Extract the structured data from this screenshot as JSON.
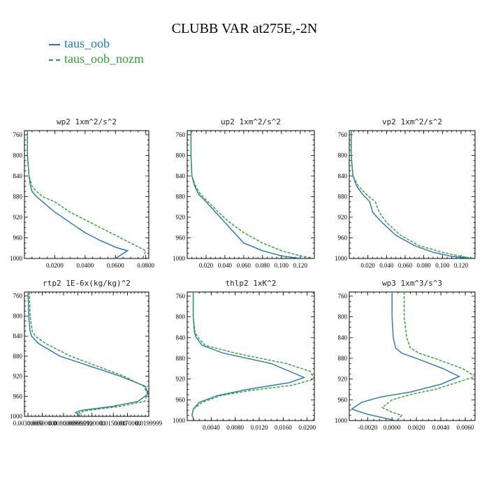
{
  "title": "CLUBB VAR at275E,-2N",
  "legend": [
    {
      "name": "taus_oob",
      "color": "#1f77b4"
    },
    {
      "name": "taus_oob_nozm",
      "color": "#2ca02c"
    }
  ],
  "chart_data": [
    {
      "type": "line",
      "title": "wp2   1xm^2/s^2",
      "xlim": [
        0,
        0.082
      ],
      "ylim": [
        1000,
        752
      ],
      "xticks": [
        "0.0200",
        "0.0400",
        "0.0600",
        "0.0800"
      ],
      "xtick_values": [
        0.02,
        0.04,
        0.06,
        0.08
      ],
      "yticks": [
        760,
        800,
        840,
        880,
        920,
        960,
        1000
      ],
      "series": [
        {
          "name": "taus_oob",
          "x": [
            0.002,
            0.002,
            0.003,
            0.004,
            0.005,
            0.008,
            0.012,
            0.02,
            0.03,
            0.04,
            0.05,
            0.06,
            0.068,
            0.06
          ],
          "y": [
            752,
            800,
            840,
            860,
            870,
            880,
            890,
            910,
            930,
            950,
            965,
            978,
            985,
            1000
          ]
        },
        {
          "name": "taus_oob_nozm",
          "x": [
            0.002,
            0.002,
            0.003,
            0.005,
            0.008,
            0.012,
            0.02,
            0.03,
            0.04,
            0.05,
            0.06,
            0.07,
            0.08,
            0.078
          ],
          "y": [
            752,
            800,
            840,
            860,
            870,
            880,
            890,
            910,
            925,
            940,
            955,
            970,
            985,
            1000
          ]
        }
      ]
    },
    {
      "type": "line",
      "title": "up2   1xm^2/s^2",
      "xlim": [
        0,
        0.135
      ],
      "ylim": [
        1000,
        752
      ],
      "xticks": [
        "0.020",
        "0.040",
        "0.060",
        "0.080",
        "0.100",
        "0.120"
      ],
      "xtick_values": [
        0.02,
        0.04,
        0.06,
        0.08,
        0.1,
        0.12
      ],
      "yticks": [
        760,
        800,
        840,
        880,
        920,
        960,
        1000
      ],
      "series": [
        {
          "name": "taus_oob",
          "x": [
            0.004,
            0.004,
            0.005,
            0.008,
            0.012,
            0.02,
            0.03,
            0.04,
            0.05,
            0.06,
            0.08,
            0.1,
            0.12
          ],
          "y": [
            752,
            800,
            840,
            860,
            875,
            890,
            910,
            930,
            950,
            970,
            985,
            995,
            1000
          ]
        },
        {
          "name": "taus_oob_nozm",
          "x": [
            0.004,
            0.004,
            0.005,
            0.009,
            0.014,
            0.022,
            0.033,
            0.045,
            0.06,
            0.08,
            0.1,
            0.12,
            0.135
          ],
          "y": [
            752,
            800,
            840,
            860,
            875,
            890,
            910,
            930,
            950,
            970,
            985,
            995,
            1000
          ]
        }
      ]
    },
    {
      "type": "line",
      "title": "vp2   1xm^2/s^2",
      "xlim": [
        0,
        0.135
      ],
      "ylim": [
        1000,
        752
      ],
      "xticks": [
        "0.020",
        "0.040",
        "0.060",
        "0.080",
        "0.100",
        "0.120"
      ],
      "xtick_values": [
        0.02,
        0.04,
        0.06,
        0.08,
        0.1,
        0.12
      ],
      "yticks": [
        760,
        800,
        840,
        880,
        920,
        960,
        1000
      ],
      "series": [
        {
          "name": "taus_oob",
          "x": [
            0.002,
            0.002,
            0.004,
            0.008,
            0.014,
            0.022,
            0.025,
            0.035,
            0.05,
            0.07,
            0.09,
            0.11,
            0.13
          ],
          "y": [
            752,
            800,
            840,
            860,
            875,
            890,
            910,
            930,
            955,
            975,
            988,
            996,
            1000
          ]
        },
        {
          "name": "taus_oob_nozm",
          "x": [
            0.002,
            0.002,
            0.004,
            0.01,
            0.018,
            0.028,
            0.032,
            0.04,
            0.055,
            0.075,
            0.1,
            0.12,
            0.135
          ],
          "y": [
            752,
            800,
            840,
            860,
            875,
            890,
            910,
            930,
            955,
            975,
            988,
            996,
            1000
          ]
        }
      ]
    },
    {
      "type": "line",
      "title": "rtp2   1E-6x(kg/kg)^2",
      "xlim": [
        0.0025,
        0.01999
      ],
      "ylim": [
        1000,
        752
      ],
      "xticks": [
        "0.00300000",
        "0.00500000",
        "0.00800000",
        "0.00999999",
        "0.0120000",
        "0.0150000",
        "0.0170000",
        "0.0199999"
      ],
      "xtick_values": [
        0.003,
        0.005,
        0.008,
        0.01,
        0.012,
        0.015,
        0.017,
        0.01999
      ],
      "yticks": [
        760,
        800,
        840,
        880,
        920,
        960,
        1000
      ],
      "series": [
        {
          "name": "taus_oob",
          "x": [
            0.003,
            0.0031,
            0.0033,
            0.0035,
            0.0045,
            0.0075,
            0.016,
            0.0195,
            0.0199,
            0.0185,
            0.015,
            0.0105,
            0.0097,
            0.0104
          ],
          "y": [
            752,
            800,
            830,
            840,
            855,
            880,
            920,
            940,
            955,
            970,
            980,
            988,
            992,
            1000
          ]
        },
        {
          "name": "taus_oob_nozm",
          "x": [
            0.0032,
            0.0033,
            0.0036,
            0.004,
            0.0055,
            0.009,
            0.0165,
            0.0193,
            0.0198,
            0.0194,
            0.016,
            0.0115,
            0.0102,
            0.0106
          ],
          "y": [
            752,
            800,
            830,
            840,
            855,
            880,
            920,
            940,
            955,
            970,
            980,
            988,
            992,
            1000
          ]
        }
      ]
    },
    {
      "type": "line",
      "title": "thlp2   1xK^2",
      "xlim": [
        0,
        0.0212
      ],
      "ylim": [
        1000,
        752
      ],
      "xticks": [
        "0.0040",
        "0.0080",
        "0.0120",
        "0.0160",
        "0.0200"
      ],
      "xtick_values": [
        0.004,
        0.008,
        0.012,
        0.016,
        0.02
      ],
      "yticks": [
        760,
        800,
        840,
        880,
        920,
        960,
        1000
      ],
      "series": [
        {
          "name": "taus_oob",
          "x": [
            0.001,
            0.001,
            0.0012,
            0.0015,
            0.0025,
            0.006,
            0.014,
            0.0195,
            0.017,
            0.01,
            0.005,
            0.002,
            0.001,
            0.0008,
            0.0012
          ],
          "y": [
            752,
            800,
            830,
            840,
            855,
            870,
            890,
            917,
            927,
            940,
            952,
            965,
            978,
            990,
            1000
          ]
        },
        {
          "name": "taus_oob_nozm",
          "x": [
            0.001,
            0.001,
            0.0013,
            0.0018,
            0.003,
            0.008,
            0.0165,
            0.0205,
            0.0212,
            0.0175,
            0.0105,
            0.0055,
            0.0025,
            0.001,
            0.0008,
            0.0012
          ],
          "y": [
            752,
            800,
            830,
            840,
            855,
            870,
            890,
            905,
            920,
            932,
            942,
            952,
            965,
            978,
            990,
            1000
          ]
        }
      ]
    },
    {
      "type": "line",
      "title": "wp3   1xm^3/s^3",
      "xlim": [
        -0.0035,
        0.0068
      ],
      "ylim": [
        1000,
        752
      ],
      "xticks": [
        "-0.0020",
        "0.0000",
        "0.0020",
        "0.0040",
        "0.0060"
      ],
      "xtick_values": [
        -0.002,
        0,
        0.002,
        0.004,
        0.006
      ],
      "yticks": [
        760,
        800,
        840,
        880,
        920,
        960,
        1000
      ],
      "series": [
        {
          "name": "taus_oob",
          "x": [
            0,
            0,
            0.0001,
            0.0003,
            0.0008,
            0.002,
            0.0042,
            0.0055,
            0.004,
            0.0015,
            -0.001,
            -0.0025,
            -0.0033,
            -0.002,
            0.0003
          ],
          "y": [
            752,
            800,
            840,
            860,
            870,
            880,
            900,
            915,
            930,
            945,
            955,
            965,
            978,
            988,
            1000
          ]
        },
        {
          "name": "taus_oob_nozm",
          "x": [
            0.001,
            0.001,
            0.0012,
            0.0015,
            0.0022,
            0.0035,
            0.0058,
            0.0068,
            0.0055,
            0.0035,
            0.0015,
            0.0,
            -0.0008,
            0.0001,
            0.0008,
            0.0004
          ],
          "y": [
            752,
            800,
            840,
            860,
            870,
            880,
            900,
            915,
            925,
            940,
            950,
            960,
            975,
            985,
            990,
            1000
          ]
        }
      ]
    }
  ]
}
